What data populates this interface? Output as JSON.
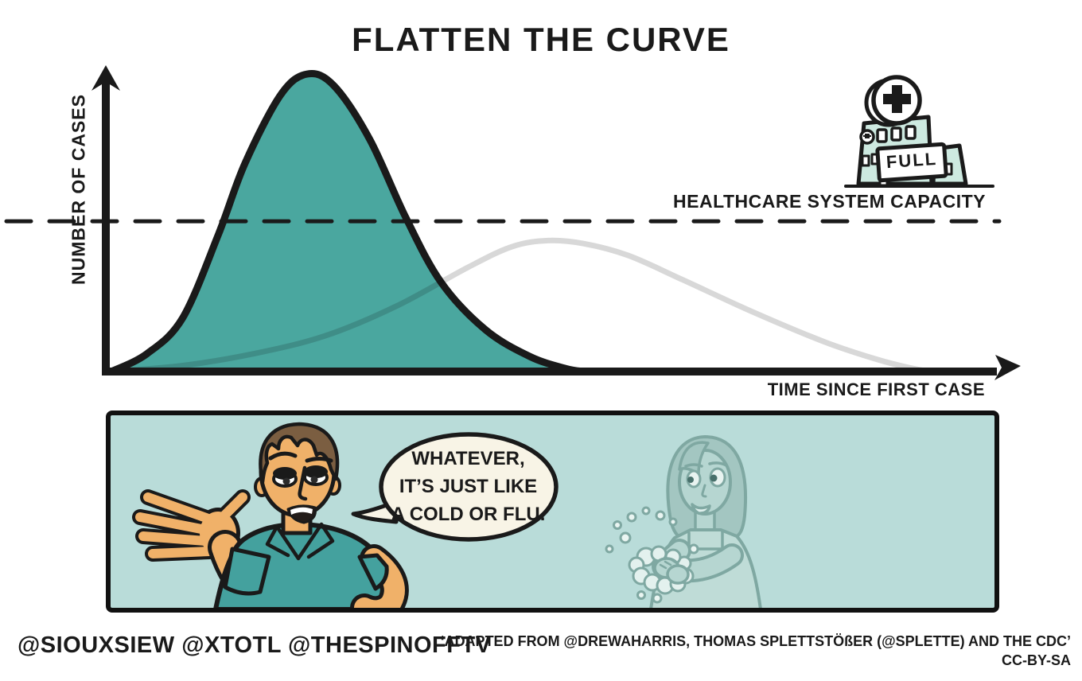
{
  "title": "FLATTEN THE CURVE",
  "axes": {
    "y_label": "NUMBER OF CASES",
    "x_label": "TIME SINCE FIRST CASE"
  },
  "capacity": {
    "label": "HEALTHCARE SYSTEM CAPACITY"
  },
  "hospital": {
    "sign": "FULL"
  },
  "speech_bubble": {
    "line1": "WHATEVER,",
    "line2": "IT’S JUST LIKE",
    "line3": "A COLD OR FLU."
  },
  "footer": {
    "credits_social": "@SIOUXSIEW @XTOTL @THESPINOFFTV",
    "attribution": "‘ADAPTED FROM @DREWAHARRIS, THOMAS SPLETTSTÖßER (@SPLETTE) AND THE CDC’",
    "license": "CC-BY-SA"
  },
  "colors": {
    "curve_teal": "#4AA79F",
    "curve_flat_gray": "#D8D8D8",
    "panel_background": "#B9DCD9",
    "bubble_background": "#F8F4E6",
    "hospital_mint": "#CDE9E0",
    "ink_black": "#1A1A1A"
  },
  "chart_data": {
    "type": "area",
    "title": "FLATTEN THE CURVE",
    "xlabel": "TIME SINCE FIRST CASE",
    "ylabel": "NUMBER OF CASES",
    "x_range_normalized": [
      0,
      1
    ],
    "y_range_normalized": [
      0,
      1
    ],
    "grid": false,
    "legend": "none",
    "tick_labels": "none",
    "reference_line": {
      "label": "HEALTHCARE SYSTEM CAPACITY",
      "level": 0.505,
      "style": "dashed"
    },
    "series": [
      {
        "name": "steep outbreak curve (exceeds capacity)",
        "style": "filled-area",
        "color": "#4AA79F",
        "peak": {
          "x": 0.22,
          "y": 1.0
        },
        "points": [
          [
            0,
            0
          ],
          [
            0.04,
            0.06
          ],
          [
            0.08,
            0.18
          ],
          [
            0.12,
            0.46
          ],
          [
            0.15,
            0.7
          ],
          [
            0.19,
            0.93
          ],
          [
            0.22,
            1.0
          ],
          [
            0.25,
            0.96
          ],
          [
            0.29,
            0.78
          ],
          [
            0.33,
            0.52
          ],
          [
            0.37,
            0.3
          ],
          [
            0.42,
            0.14
          ],
          [
            0.47,
            0.05
          ],
          [
            0.51,
            0.01
          ],
          [
            0.53,
            0
          ]
        ]
      },
      {
        "name": "flattened curve (stays under capacity)",
        "style": "line",
        "color": "#D8D8D8",
        "peak": {
          "x": 0.49,
          "y": 0.44
        },
        "points": [
          [
            0,
            0
          ],
          [
            0.08,
            0.02
          ],
          [
            0.16,
            0.06
          ],
          [
            0.24,
            0.12
          ],
          [
            0.32,
            0.22
          ],
          [
            0.4,
            0.35
          ],
          [
            0.45,
            0.42
          ],
          [
            0.49,
            0.44
          ],
          [
            0.53,
            0.43
          ],
          [
            0.58,
            0.39
          ],
          [
            0.64,
            0.31
          ],
          [
            0.72,
            0.2
          ],
          [
            0.8,
            0.1
          ],
          [
            0.86,
            0.04
          ],
          [
            0.9,
            0.01
          ],
          [
            0.92,
            0
          ]
        ]
      }
    ]
  }
}
